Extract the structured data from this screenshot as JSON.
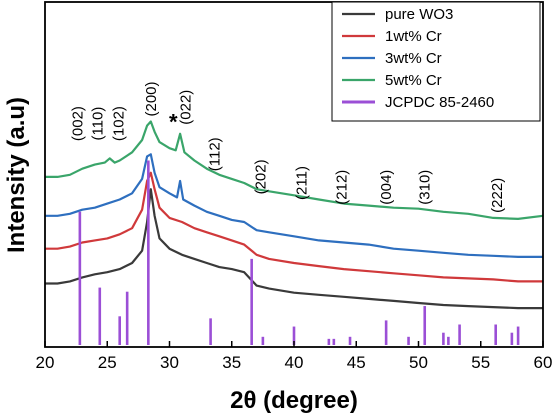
{
  "chart_data": {
    "type": "line",
    "xlabel": "2θ (degree)",
    "ylabel": "Intensity (a.u)",
    "xlim": [
      20,
      60
    ],
    "x_ticks": [
      "20",
      "25",
      "30",
      "35",
      "40",
      "45",
      "50",
      "55",
      "60"
    ],
    "y_ticks_shown": false,
    "legend_position": "top-right",
    "series": [
      {
        "name": "pure WO3",
        "color": "#3a3a3a",
        "kind": "line",
        "points": [
          [
            20,
            0.3
          ],
          [
            21,
            0.3
          ],
          [
            22,
            0.31
          ],
          [
            23,
            0.33
          ],
          [
            24,
            0.345
          ],
          [
            25,
            0.355
          ],
          [
            26,
            0.37
          ],
          [
            27,
            0.4
          ],
          [
            27.8,
            0.46
          ],
          [
            28.2,
            0.6
          ],
          [
            28.5,
            0.76
          ],
          [
            28.8,
            0.63
          ],
          [
            29.2,
            0.52
          ],
          [
            30,
            0.47
          ],
          [
            31,
            0.44
          ],
          [
            32,
            0.42
          ],
          [
            33,
            0.4
          ],
          [
            34,
            0.38
          ],
          [
            35,
            0.37
          ],
          [
            36,
            0.355
          ],
          [
            37,
            0.29
          ],
          [
            38,
            0.275
          ],
          [
            40,
            0.255
          ],
          [
            42,
            0.245
          ],
          [
            44,
            0.235
          ],
          [
            46,
            0.225
          ],
          [
            48,
            0.215
          ],
          [
            50,
            0.205
          ],
          [
            52,
            0.195
          ],
          [
            54,
            0.19
          ],
          [
            56,
            0.185
          ],
          [
            58,
            0.18
          ],
          [
            60,
            0.18
          ]
        ]
      },
      {
        "name": "1wt% Cr",
        "color": "#d0393b",
        "kind": "line",
        "points": [
          [
            20,
            0.47
          ],
          [
            21,
            0.47
          ],
          [
            22,
            0.48
          ],
          [
            23,
            0.5
          ],
          [
            24,
            0.51
          ],
          [
            25,
            0.52
          ],
          [
            26,
            0.54
          ],
          [
            27,
            0.57
          ],
          [
            27.8,
            0.66
          ],
          [
            28.2,
            0.8
          ],
          [
            28.5,
            0.84
          ],
          [
            28.8,
            0.76
          ],
          [
            29.2,
            0.67
          ],
          [
            30,
            0.62
          ],
          [
            31,
            0.6
          ],
          [
            32,
            0.57
          ],
          [
            33,
            0.55
          ],
          [
            34,
            0.53
          ],
          [
            35,
            0.51
          ],
          [
            36,
            0.49
          ],
          [
            37,
            0.44
          ],
          [
            38,
            0.42
          ],
          [
            40,
            0.4
          ],
          [
            42,
            0.385
          ],
          [
            44,
            0.37
          ],
          [
            46,
            0.36
          ],
          [
            48,
            0.35
          ],
          [
            50,
            0.34
          ],
          [
            52,
            0.33
          ],
          [
            54,
            0.325
          ],
          [
            56,
            0.32
          ],
          [
            58,
            0.31
          ],
          [
            60,
            0.31
          ]
        ]
      },
      {
        "name": "3wt% Cr",
        "color": "#2e6fbf",
        "kind": "line",
        "points": [
          [
            20,
            0.63
          ],
          [
            21,
            0.63
          ],
          [
            22,
            0.64
          ],
          [
            23,
            0.66
          ],
          [
            24,
            0.67
          ],
          [
            25,
            0.69
          ],
          [
            26,
            0.71
          ],
          [
            27,
            0.74
          ],
          [
            27.8,
            0.81
          ],
          [
            28.2,
            0.92
          ],
          [
            28.5,
            0.93
          ],
          [
            28.8,
            0.84
          ],
          [
            29.2,
            0.77
          ],
          [
            30,
            0.74
          ],
          [
            30.6,
            0.72
          ],
          [
            30.85,
            0.8
          ],
          [
            31.1,
            0.71
          ],
          [
            32,
            0.68
          ],
          [
            33,
            0.65
          ],
          [
            34,
            0.63
          ],
          [
            35,
            0.61
          ],
          [
            36,
            0.6
          ],
          [
            37,
            0.56
          ],
          [
            38,
            0.55
          ],
          [
            40,
            0.53
          ],
          [
            42,
            0.51
          ],
          [
            44,
            0.5
          ],
          [
            46,
            0.49
          ],
          [
            48,
            0.47
          ],
          [
            50,
            0.46
          ],
          [
            52,
            0.45
          ],
          [
            54,
            0.44
          ],
          [
            56,
            0.435
          ],
          [
            58,
            0.43
          ],
          [
            60,
            0.43
          ]
        ]
      },
      {
        "name": "5wt% Cr",
        "color": "#3aa56a",
        "kind": "line",
        "points": [
          [
            20,
            0.82
          ],
          [
            21,
            0.82
          ],
          [
            22,
            0.83
          ],
          [
            23,
            0.86
          ],
          [
            24,
            0.88
          ],
          [
            24.8,
            0.89
          ],
          [
            25.2,
            0.91
          ],
          [
            25.6,
            0.89
          ],
          [
            26,
            0.9
          ],
          [
            27,
            0.94
          ],
          [
            27.8,
            1.0
          ],
          [
            28.2,
            1.07
          ],
          [
            28.5,
            1.09
          ],
          [
            28.8,
            1.04
          ],
          [
            29.2,
            0.99
          ],
          [
            30,
            0.96
          ],
          [
            30.5,
            0.95
          ],
          [
            30.85,
            1.03
          ],
          [
            31.2,
            0.94
          ],
          [
            32,
            0.9
          ],
          [
            33,
            0.86
          ],
          [
            34,
            0.83
          ],
          [
            35,
            0.81
          ],
          [
            36,
            0.79
          ],
          [
            37,
            0.76
          ],
          [
            38,
            0.75
          ],
          [
            40,
            0.73
          ],
          [
            42,
            0.71
          ],
          [
            44,
            0.69
          ],
          [
            46,
            0.68
          ],
          [
            48,
            0.67
          ],
          [
            50,
            0.665
          ],
          [
            52,
            0.65
          ],
          [
            54,
            0.64
          ],
          [
            56,
            0.62
          ],
          [
            58,
            0.615
          ],
          [
            60,
            0.63
          ]
        ]
      },
      {
        "name": "JCPDC 85-2460",
        "color": "#9b4fd6",
        "kind": "sticks",
        "sticks": [
          [
            22.8,
            0.65
          ],
          [
            24.4,
            0.28
          ],
          [
            26.0,
            0.14
          ],
          [
            26.6,
            0.26
          ],
          [
            28.3,
            0.9
          ],
          [
            33.3,
            0.13
          ],
          [
            36.6,
            0.42
          ],
          [
            37.5,
            0.04
          ],
          [
            40.0,
            0.09
          ],
          [
            42.8,
            0.03
          ],
          [
            43.2,
            0.03
          ],
          [
            44.5,
            0.04
          ],
          [
            47.4,
            0.12
          ],
          [
            49.2,
            0.04
          ],
          [
            50.5,
            0.19
          ],
          [
            52.0,
            0.06
          ],
          [
            52.4,
            0.04
          ],
          [
            53.3,
            0.1
          ],
          [
            56.2,
            0.1
          ],
          [
            57.5,
            0.06
          ],
          [
            58.0,
            0.09
          ]
        ]
      }
    ],
    "peak_labels": [
      {
        "text": "(002)",
        "x": 22.6,
        "level": 1.08
      },
      {
        "text": "(110)",
        "x": 24.2,
        "level": 1.08
      },
      {
        "text": "(102)",
        "x": 25.9,
        "level": 1.08
      },
      {
        "text": "(200)",
        "x": 28.5,
        "level": 1.2
      },
      {
        "text": "(022)",
        "x": 31.3,
        "level": 1.16
      },
      {
        "text": "*",
        "x": 30.3,
        "level": 1.11
      },
      {
        "text": "(112)",
        "x": 33.6,
        "level": 0.93
      },
      {
        "text": "(202)",
        "x": 37.3,
        "level": 0.82
      },
      {
        "text": "(211)",
        "x": 40.6,
        "level": 0.79
      },
      {
        "text": "(212)",
        "x": 43.8,
        "level": 0.77
      },
      {
        "text": "(004)",
        "x": 47.4,
        "level": 0.77
      },
      {
        "text": "(310)",
        "x": 50.5,
        "level": 0.77
      },
      {
        "text": "(222)",
        "x": 56.3,
        "level": 0.73
      }
    ]
  }
}
